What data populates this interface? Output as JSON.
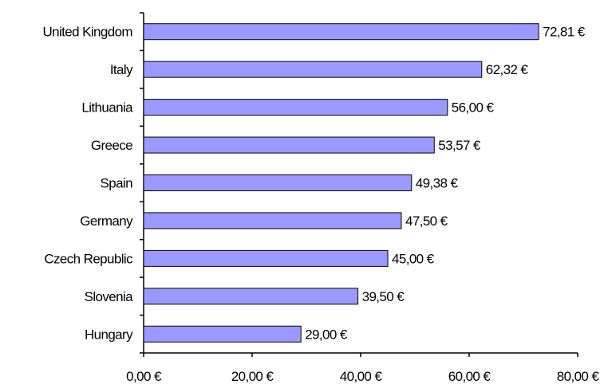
{
  "chart_data": {
    "type": "bar",
    "orientation": "horizontal",
    "categories": [
      "United Kingdom",
      "Italy",
      "Lithuania",
      "Greece",
      "Spain",
      "Germany",
      "Czech Republic",
      "Slovenia",
      "Hungary"
    ],
    "values": [
      72.81,
      62.32,
      56.0,
      53.57,
      49.38,
      47.5,
      45.0,
      39.5,
      29.0
    ],
    "value_labels": [
      "72,81 €",
      "62,32 €",
      "56,00 €",
      "53,57 €",
      "49,38 €",
      "47,50 €",
      "45,00 €",
      "39,50 €",
      "29,00 €"
    ],
    "x_ticks": [
      0,
      20,
      40,
      60,
      80
    ],
    "x_tick_labels": [
      "0,00 €",
      "20,00 €",
      "40,00 €",
      "60,00 €",
      "80,00 €"
    ],
    "xlim": [
      0,
      80
    ],
    "bar_color": "#9999ff",
    "title": "",
    "xlabel": "",
    "ylabel": "",
    "grid": false,
    "legend": "none"
  }
}
